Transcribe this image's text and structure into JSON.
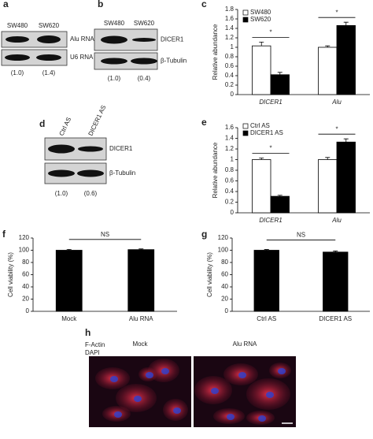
{
  "chart_data": [
    {
      "type": "bar",
      "panel": "c",
      "ylabel": "Relative abundance",
      "categories": [
        "DICER1",
        "Alu"
      ],
      "series": [
        {
          "name": "SW480",
          "color": "#ffffff",
          "values": [
            1.03,
            1.0
          ],
          "errors": [
            0.08,
            0.03
          ]
        },
        {
          "name": "SW620",
          "color": "#000000",
          "values": [
            0.42,
            1.46
          ],
          "errors": [
            0.05,
            0.07
          ]
        }
      ],
      "ylim": [
        0,
        1.8
      ],
      "yticks": [
        0,
        0.2,
        0.4,
        0.6,
        0.8,
        1,
        1.2,
        1.4,
        1.6,
        1.8
      ],
      "annotations": [
        "*",
        "*"
      ]
    },
    {
      "type": "bar",
      "panel": "e",
      "ylabel": "Relative abundance",
      "categories": [
        "DICER1",
        "Alu"
      ],
      "series": [
        {
          "name": "Ctrl AS",
          "color": "#ffffff",
          "values": [
            1.0,
            1.0
          ],
          "errors": [
            0.03,
            0.04
          ]
        },
        {
          "name": "DICER1 AS",
          "color": "#000000",
          "values": [
            0.31,
            1.33
          ],
          "errors": [
            0.02,
            0.06
          ]
        }
      ],
      "ylim": [
        0,
        1.6
      ],
      "yticks": [
        0,
        0.2,
        0.4,
        0.6,
        0.8,
        1,
        1.2,
        1.4,
        1.6
      ],
      "annotations": [
        "*",
        "*"
      ]
    },
    {
      "type": "bar",
      "panel": "f",
      "ylabel": "Cell viability (%)",
      "categories": [
        "Mock",
        "Alu RNA"
      ],
      "color": "#000000",
      "values": [
        100,
        101
      ],
      "errors": [
        1.5,
        1.2
      ],
      "ylim": [
        0,
        120
      ],
      "yticks": [
        0,
        20,
        40,
        60,
        80,
        100,
        120
      ],
      "annotations": [
        "NS"
      ]
    },
    {
      "type": "bar",
      "panel": "g",
      "ylabel": "Cell viability (%)",
      "categories": [
        "Ctrl AS",
        "DICER1 AS"
      ],
      "color": "#000000",
      "values": [
        100,
        97
      ],
      "errors": [
        1.2,
        1.8
      ],
      "ylim": [
        0,
        120
      ],
      "yticks": [
        0,
        20,
        40,
        60,
        80,
        100,
        120
      ],
      "annotations": [
        "NS"
      ]
    }
  ],
  "blots": [
    {
      "panel": "a",
      "lanes": [
        "SW480",
        "SW620"
      ],
      "rows": [
        "Alu RNA",
        "U6 RNA"
      ],
      "quant": [
        "(1.0)",
        "(1.4)"
      ]
    },
    {
      "panel": "b",
      "lanes": [
        "SW480",
        "SW620"
      ],
      "rows": [
        "DICER1",
        "β-Tubulin"
      ],
      "quant": [
        "(1.0)",
        "(0.4)"
      ]
    },
    {
      "panel": "d",
      "lanes": [
        "Ctrl AS",
        "DICER1 AS"
      ],
      "rows": [
        "DICER1",
        "β-Tubulin"
      ],
      "quant": [
        "(1.0)",
        "(0.6)"
      ]
    }
  ],
  "micrograph": {
    "panel": "h",
    "stains": [
      "F-Actin",
      "DAPI"
    ],
    "columns": [
      "Mock",
      "Alu RNA"
    ]
  }
}
